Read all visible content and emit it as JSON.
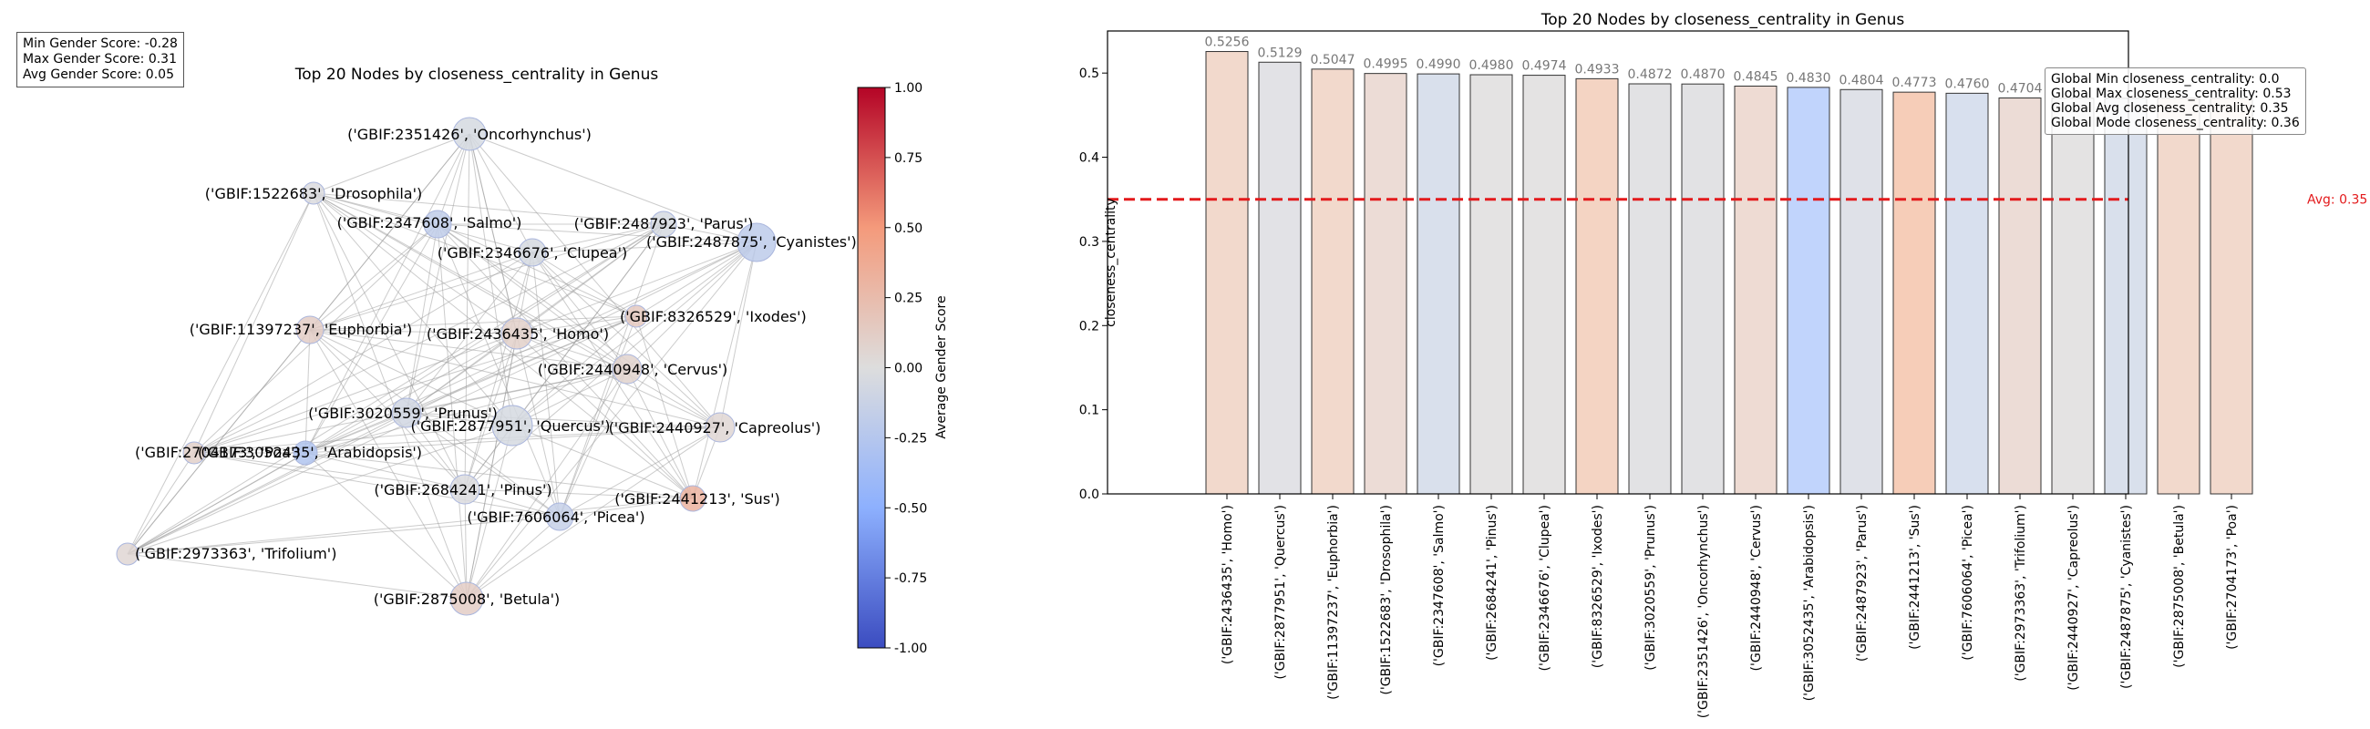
{
  "stats": {
    "min": "Min Gender Score: -0.28",
    "max": "Max Gender Score: 0.31",
    "avg": "Avg Gender Score: 0.05"
  },
  "colors": {
    "avg_line": "#e31a1c",
    "edge": "#999999",
    "bar_edge": "#333333"
  },
  "chart_data": [
    {
      "type": "network",
      "title": "Top 20 Nodes by closeness_centrality in Genus",
      "colorbar": {
        "label": "Average Gender Score",
        "range": [
          -1,
          1
        ],
        "ticks": [
          "1.00",
          "0.75",
          "0.50",
          "0.25",
          "0.00",
          "-0.25",
          "-0.50",
          "-0.75",
          "-1.00"
        ]
      },
      "nodes": [
        {
          "label": "('GBIF:2351426', 'Oncorhynchus')",
          "score": -0.05
        },
        {
          "label": "('GBIF:1522683', 'Drosophila')",
          "score": -0.02
        },
        {
          "label": "('GBIF:2347608', 'Salmo')",
          "score": -0.18
        },
        {
          "label": "('GBIF:2487923', 'Parus')",
          "score": -0.05
        },
        {
          "label": "('GBIF:2487875', 'Cyanistes')",
          "score": -0.2
        },
        {
          "label": "('GBIF:2346676', 'Clupea')",
          "score": -0.05
        },
        {
          "label": "('GBIF:8326529', 'Ixodes')",
          "score": 0.15
        },
        {
          "label": "('GBIF:11397237', 'Euphorbia')",
          "score": 0.12
        },
        {
          "label": "('GBIF:2436435', 'Homo')",
          "score": 0.1
        },
        {
          "label": "('GBIF:2440948', 'Cervus')",
          "score": 0.08
        },
        {
          "label": "('GBIF:3020559', 'Prunus')",
          "score": -0.08
        },
        {
          "label": "('GBIF:2877951', 'Quercus')",
          "score": -0.05
        },
        {
          "label": "('GBIF:2440927', 'Capreolus')",
          "score": 0.05
        },
        {
          "label": "('GBIF:2704173', 'Poa')",
          "score": 0.1
        },
        {
          "label": "('GBIF:3052435', 'Arabidopsis')",
          "score": -0.28
        },
        {
          "label": "('GBIF:2684241', 'Pinus')",
          "score": -0.02
        },
        {
          "label": "('GBIF:2441213', 'Sus')",
          "score": 0.31
        },
        {
          "label": "('GBIF:7606064', 'Picea')",
          "score": -0.15
        },
        {
          "label": "('GBIF:2973363', 'Trifolium')",
          "score": 0.05
        },
        {
          "label": "('GBIF:2875008', 'Betula')",
          "score": 0.12
        }
      ]
    },
    {
      "type": "bar",
      "title": "Top 20 Nodes by closeness_centrality in Genus",
      "ylabel": "closeness_centrality",
      "ylim": [
        0,
        0.55
      ],
      "yticks": [
        "0.0",
        "0.1",
        "0.2",
        "0.3",
        "0.4",
        "0.5"
      ],
      "avg_line": {
        "value": 0.35,
        "label": "Avg: 0.35"
      },
      "categories": [
        "('GBIF:2436435', 'Homo')",
        "('GBIF:2877951', 'Quercus')",
        "('GBIF:11397237', 'Euphorbia')",
        "('GBIF:1522683', 'Drosophila')",
        "('GBIF:2347608', 'Salmo')",
        "('GBIF:2684241', 'Pinus')",
        "('GBIF:2346676', 'Clupea')",
        "('GBIF:8326529', 'Ixodes')",
        "('GBIF:3020559', 'Prunus')",
        "('GBIF:2351426', 'Oncorhynchus')",
        "('GBIF:2440948', 'Cervus')",
        "('GBIF:3052435', 'Arabidopsis')",
        "('GBIF:2487923', 'Parus')",
        "('GBIF:2441213', 'Sus')",
        "('GBIF:7606064', 'Picea')",
        "('GBIF:2973363', 'Trifolium')",
        "('GBIF:2440927', 'Capreolus')",
        "('GBIF:2487875', 'Cyanistes')",
        "('GBIF:2875008', 'Betula')",
        "('GBIF:2704173', 'Poa')"
      ],
      "values": [
        0.5256,
        0.5129,
        0.5047,
        0.4995,
        0.499,
        0.498,
        0.4974,
        0.4933,
        0.4872,
        0.487,
        0.4845,
        0.483,
        0.4804,
        0.4773,
        0.476,
        0.4704,
        0.47,
        0.47,
        0.47,
        0.47
      ],
      "value_labels": [
        "0.5256",
        "0.5129",
        "0.5047",
        "0.4995",
        "0.4990",
        "0.4980",
        "0.4974",
        "0.4933",
        "0.4872",
        "0.4870",
        "0.4845",
        "0.4830",
        "0.4804",
        "0.4773",
        "0.4760",
        "0.4704",
        "",
        "",
        "",
        ""
      ],
      "colors": [
        "#f2d9cc",
        "#e2e2e6",
        "#f2d9cc",
        "#ecdcd6",
        "#d9e0ec",
        "#e4e3e3",
        "#e4e3e3",
        "#f4d4c3",
        "#e2e2e4",
        "#e2e2e4",
        "#eedbd3",
        "#c1d4fc",
        "#dfe1e8",
        "#f6cdb8",
        "#d8e0ee",
        "#ecdcd6",
        "#e4e3e3",
        "#d9e0ec",
        "#f2d9cc",
        "#f2d9cc"
      ],
      "global_stats": [
        "Global Min closeness_centrality: 0.0",
        "Global Max closeness_centrality: 0.53",
        "Global Avg closeness_centrality: 0.35",
        "Global Mode closeness_centrality: 0.36"
      ]
    }
  ]
}
